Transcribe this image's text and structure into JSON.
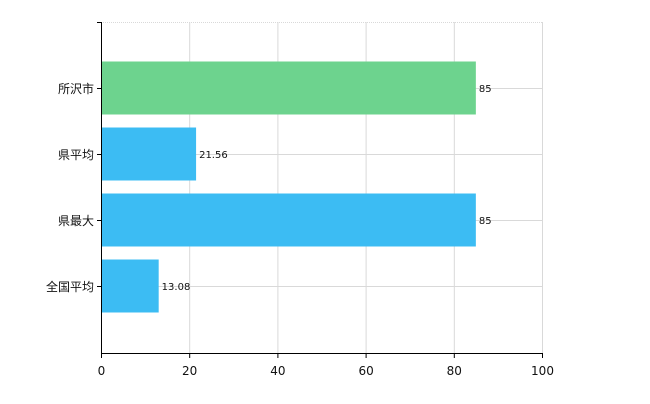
{
  "chart_data": {
    "type": "bar",
    "orientation": "horizontal",
    "categories": [
      "所沢市",
      "県平均",
      "県最大",
      "全国平均"
    ],
    "values": [
      85,
      21.56,
      85,
      13.08
    ],
    "value_labels": [
      "85",
      "21.56",
      "85",
      "13.08"
    ],
    "bar_colors": [
      "#6dd38e",
      "#3cbcf3",
      "#3cbcf3",
      "#3cbcf3"
    ],
    "xlim": [
      0,
      100
    ],
    "xticks": [
      0,
      20,
      40,
      60,
      80,
      100
    ],
    "xtick_labels": [
      "0",
      "20",
      "40",
      "60",
      "80",
      "100"
    ],
    "grid": true,
    "title": "",
    "xlabel": "",
    "ylabel": ""
  }
}
